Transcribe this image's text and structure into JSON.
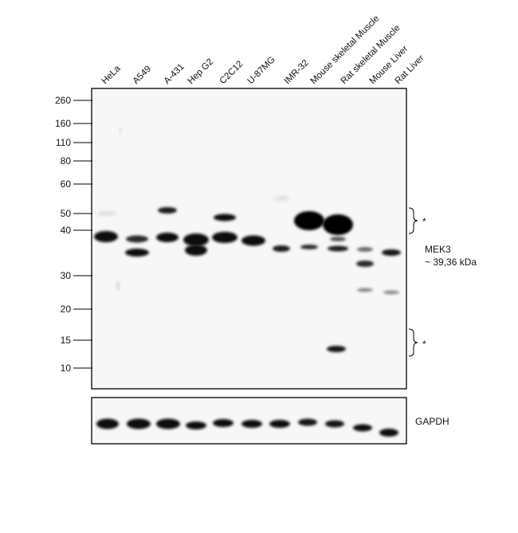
{
  "lanes": [
    "HeLa",
    "A549",
    "A-431",
    "Hep G2",
    "C2C12",
    "U-87MG",
    "IMR-32",
    "Mouse skeletal Muscle",
    "Rat skeletal Muscle",
    "Mouse Liver",
    "Rat Liver"
  ],
  "markers": [
    "260",
    "160",
    "110",
    "80",
    "60",
    "50",
    "40",
    "30",
    "20",
    "15",
    "10"
  ],
  "target_label": "MEK3",
  "target_mw": "~ 39,36 kDa",
  "asterisk": "*",
  "loading_control": "GAPDH",
  "colors": {
    "band": "#0a0a0a",
    "background": "#f7f7f7",
    "frame": "#000000"
  }
}
